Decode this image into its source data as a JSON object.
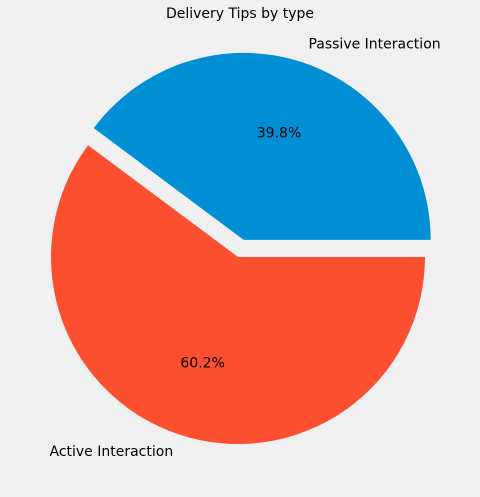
{
  "chart_data": {
    "type": "pie",
    "title": "Delivery Tips by type",
    "slices": [
      {
        "label": "Passive Interaction",
        "value": 39.8,
        "pct_label": "39.8%",
        "color": "#008fd5",
        "exploded": true
      },
      {
        "label": "Active Interaction",
        "value": 60.2,
        "pct_label": "60.2%",
        "color": "#fc4f30",
        "exploded": false
      }
    ],
    "start_angle_deg": 0,
    "direction": "counterclockwise",
    "legend": "none",
    "grid": false
  }
}
